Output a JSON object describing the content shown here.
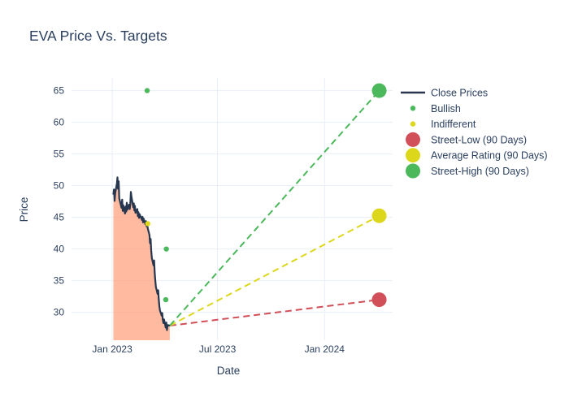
{
  "chart_data": {
    "type": "line",
    "title": "EVA Price Vs. Targets",
    "xlabel": "Date",
    "ylabel": "Price",
    "grid": true,
    "legend_position": "right-top",
    "x_domain": [
      "2022-10-23",
      "2024-04-27"
    ],
    "y_domain": [
      25.6,
      67.0
    ],
    "y_ticks": [
      30,
      35,
      40,
      45,
      50,
      55,
      60,
      65
    ],
    "x_ticks": [
      {
        "date": "2023-01-01",
        "label": "Jan 2023"
      },
      {
        "date": "2023-07-01",
        "label": "Jul 2023"
      },
      {
        "date": "2024-01-01",
        "label": "Jan 2024"
      }
    ],
    "series": [
      {
        "name": "Close Prices",
        "type": "line",
        "fill": "tozero",
        "dates": [
          "2023-01-03",
          "2023-01-04",
          "2023-01-05",
          "2023-01-06",
          "2023-01-09",
          "2023-01-10",
          "2023-01-11",
          "2023-01-12",
          "2023-01-13",
          "2023-01-17",
          "2023-01-18",
          "2023-01-19",
          "2023-01-20",
          "2023-01-23",
          "2023-01-24",
          "2023-01-25",
          "2023-01-26",
          "2023-01-27",
          "2023-01-30",
          "2023-01-31",
          "2023-02-01",
          "2023-02-02",
          "2023-02-03",
          "2023-02-06",
          "2023-02-07",
          "2023-02-08",
          "2023-02-09",
          "2023-02-10",
          "2023-02-13",
          "2023-02-14",
          "2023-02-15",
          "2023-02-16",
          "2023-02-17",
          "2023-02-21",
          "2023-02-22",
          "2023-02-23",
          "2023-02-24",
          "2023-02-27",
          "2023-02-28",
          "2023-03-01",
          "2023-03-02",
          "2023-03-03",
          "2023-03-06",
          "2023-03-07",
          "2023-03-08",
          "2023-03-09",
          "2023-03-10",
          "2023-03-13",
          "2023-03-14",
          "2023-03-15",
          "2023-03-16",
          "2023-03-17",
          "2023-03-20",
          "2023-03-21",
          "2023-03-22",
          "2023-03-23",
          "2023-03-24",
          "2023-03-27",
          "2023-03-28",
          "2023-03-29",
          "2023-03-30",
          "2023-03-31",
          "2023-04-03",
          "2023-04-04",
          "2023-04-05",
          "2023-04-06",
          "2023-04-10"
        ],
        "values": [
          48.6,
          49.4,
          47.6,
          48.8,
          50.3,
          51.3,
          49.5,
          50.7,
          48.0,
          46.5,
          47.8,
          46.0,
          46.9,
          45.6,
          46.7,
          45.9,
          47.3,
          46.2,
          47.0,
          46.3,
          47.1,
          49.0,
          48.3,
          46.6,
          47.2,
          46.1,
          46.8,
          45.7,
          46.3,
          45.2,
          45.8,
          44.9,
          45.5,
          44.6,
          45.1,
          44.2,
          44.8,
          43.9,
          44.4,
          43.6,
          44.1,
          43.3,
          42.2,
          40.9,
          41.6,
          39.8,
          38.6,
          37.4,
          38.2,
          36.3,
          35.1,
          34.0,
          32.9,
          33.5,
          32.1,
          30.9,
          30.3,
          29.5,
          29.9,
          28.8,
          28.3,
          28.9,
          27.6,
          28.4,
          27.2,
          28.0,
          27.9
        ]
      }
    ],
    "ratings": [
      {
        "type": "Bullish",
        "date": "2023-03-02",
        "price_target": 65
      },
      {
        "type": "Indifferent",
        "date": "2023-03-03",
        "price_target": 44
      },
      {
        "type": "Bullish",
        "date": "2023-04-03",
        "price_target": 32
      },
      {
        "type": "Bullish",
        "date": "2023-04-04",
        "price_target": 40
      }
    ],
    "projection_origin": {
      "date": "2023-04-10",
      "value": 27.9
    },
    "targets": [
      {
        "name": "Street-Low (90 Days)",
        "date": "2024-04-04",
        "value": 32,
        "color_key": "street_low"
      },
      {
        "name": "Average Rating (90 Days)",
        "date": "2024-04-04",
        "value": 45.25,
        "color_key": "average"
      },
      {
        "name": "Street-High (90 Days)",
        "date": "2024-04-04",
        "value": 65,
        "color_key": "street_high"
      }
    ],
    "legend": [
      {
        "label": "Close Prices",
        "swatch": "line",
        "color_key": "close_line"
      },
      {
        "label": "Bullish",
        "swatch": "dot",
        "color_key": "bullish"
      },
      {
        "label": "Indifferent",
        "swatch": "dot",
        "color_key": "indifferent"
      },
      {
        "label": "Street-Low (90 Days)",
        "swatch": "bubble",
        "color_key": "street_low"
      },
      {
        "label": "Average Rating (90 Days)",
        "swatch": "bubble",
        "color_key": "average"
      },
      {
        "label": "Street-High (90 Days)",
        "swatch": "bubble",
        "color_key": "street_high"
      }
    ],
    "colors": {
      "close_line": "#26374f",
      "area_fill": "#ffa07a",
      "bullish": "#4cb85c",
      "indifferent": "#ddd71c",
      "street_low": "#d14f58",
      "average": "#ddd71c",
      "street_high": "#4cb85c",
      "grid": "#e9eef6",
      "text": "#2a3f5f"
    }
  }
}
